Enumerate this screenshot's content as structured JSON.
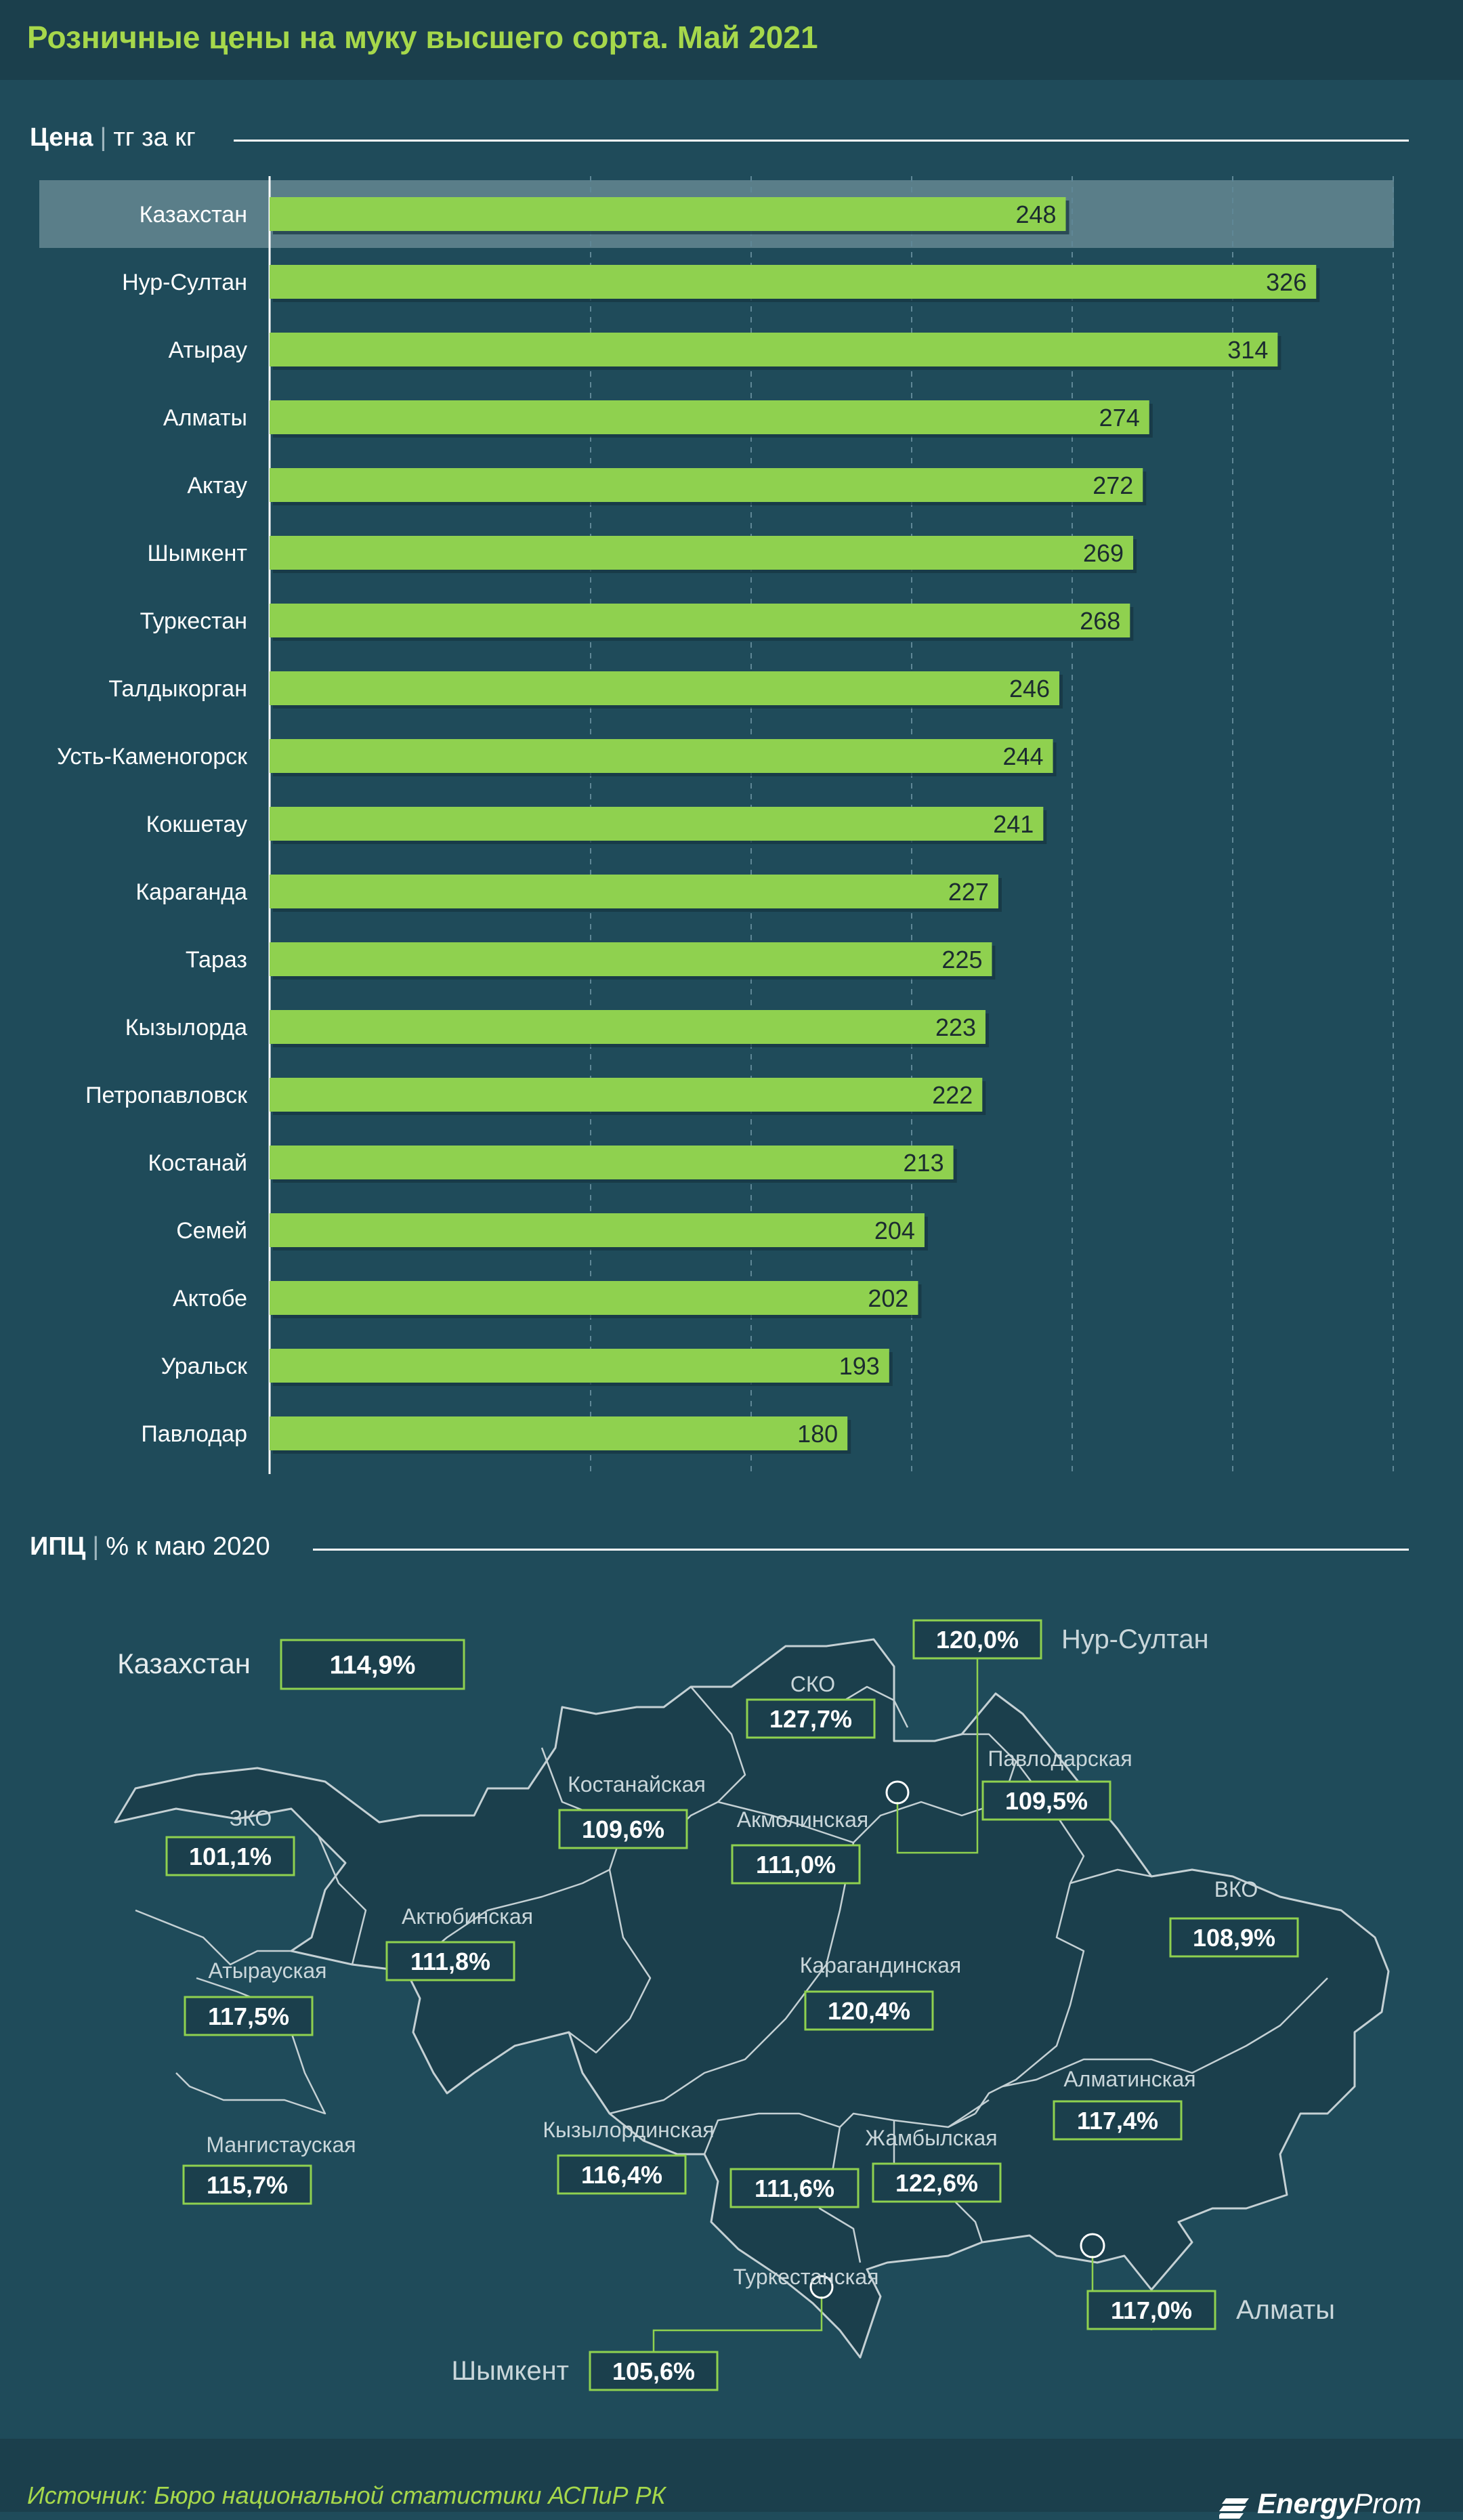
{
  "title": "Розничные цены на муку высшего сорта. Май 2021",
  "price_section": {
    "label": "Цена",
    "unit": "тг за кг"
  },
  "cpi_section": {
    "label": "ИПЦ",
    "unit": "% к маю 2020"
  },
  "chart_data": {
    "type": "bar",
    "orientation": "horizontal",
    "xlim": [
      0,
      350
    ],
    "grid": "dashed vertical",
    "highlight": "Казахстан",
    "categories": [
      "Казахстан",
      "Нур-Султан",
      "Атырау",
      "Алматы",
      "Актау",
      "Шымкент",
      "Туркестан",
      "Талдыкорган",
      "Усть-Каменогорск",
      "Кокшетау",
      "Караганда",
      "Тараз",
      "Кызылорда",
      "Петропавловск",
      "Костанай",
      "Семей",
      "Актобе",
      "Уральск",
      "Павлодар"
    ],
    "values": [
      248,
      326,
      314,
      274,
      272,
      269,
      268,
      246,
      244,
      241,
      227,
      225,
      223,
      222,
      213,
      204,
      202,
      193,
      180
    ],
    "bar_color": "#8fd14f"
  },
  "map": {
    "national": {
      "name": "Казахстан",
      "value": "114,9%"
    },
    "regions": [
      {
        "name": "СКО",
        "value": "127,7%"
      },
      {
        "name": "Костанайская",
        "value": "109,6%"
      },
      {
        "name": "Акмолинская",
        "value": "111,0%"
      },
      {
        "name": "Павлодарская",
        "value": "109,5%"
      },
      {
        "name": "ЗКО",
        "value": "101,1%"
      },
      {
        "name": "Актюбинская",
        "value": "111,8%"
      },
      {
        "name": "Карагандинская",
        "value": "120,4%"
      },
      {
        "name": "ВКО",
        "value": "108,9%"
      },
      {
        "name": "Атырауская",
        "value": "117,5%"
      },
      {
        "name": "Мангистауская",
        "value": "115,7%"
      },
      {
        "name": "Кызылординская",
        "value": "116,4%"
      },
      {
        "name": "Жамбылская",
        "value": "122,6%"
      },
      {
        "name": "Алматинская",
        "value": "117,4%"
      },
      {
        "name": "Туркестанская",
        "value": "111,6%"
      }
    ],
    "cities": [
      {
        "name": "Нур-Султан",
        "value": "120,0%"
      },
      {
        "name": "Алматы",
        "value": "117,0%"
      },
      {
        "name": "Шымкент",
        "value": "105,6%"
      }
    ]
  },
  "footer": {
    "source": "Источник: Бюро национальной статистики АСПиР РК",
    "brand_part1": "Energy",
    "brand_part2": "Prom"
  },
  "colors": {
    "background": "#1f4b5a",
    "bar": "#8fd14f",
    "accent_text": "#a6d84b",
    "map_fill": "#1b3f4c",
    "label_box_border": "#8fd14f"
  }
}
